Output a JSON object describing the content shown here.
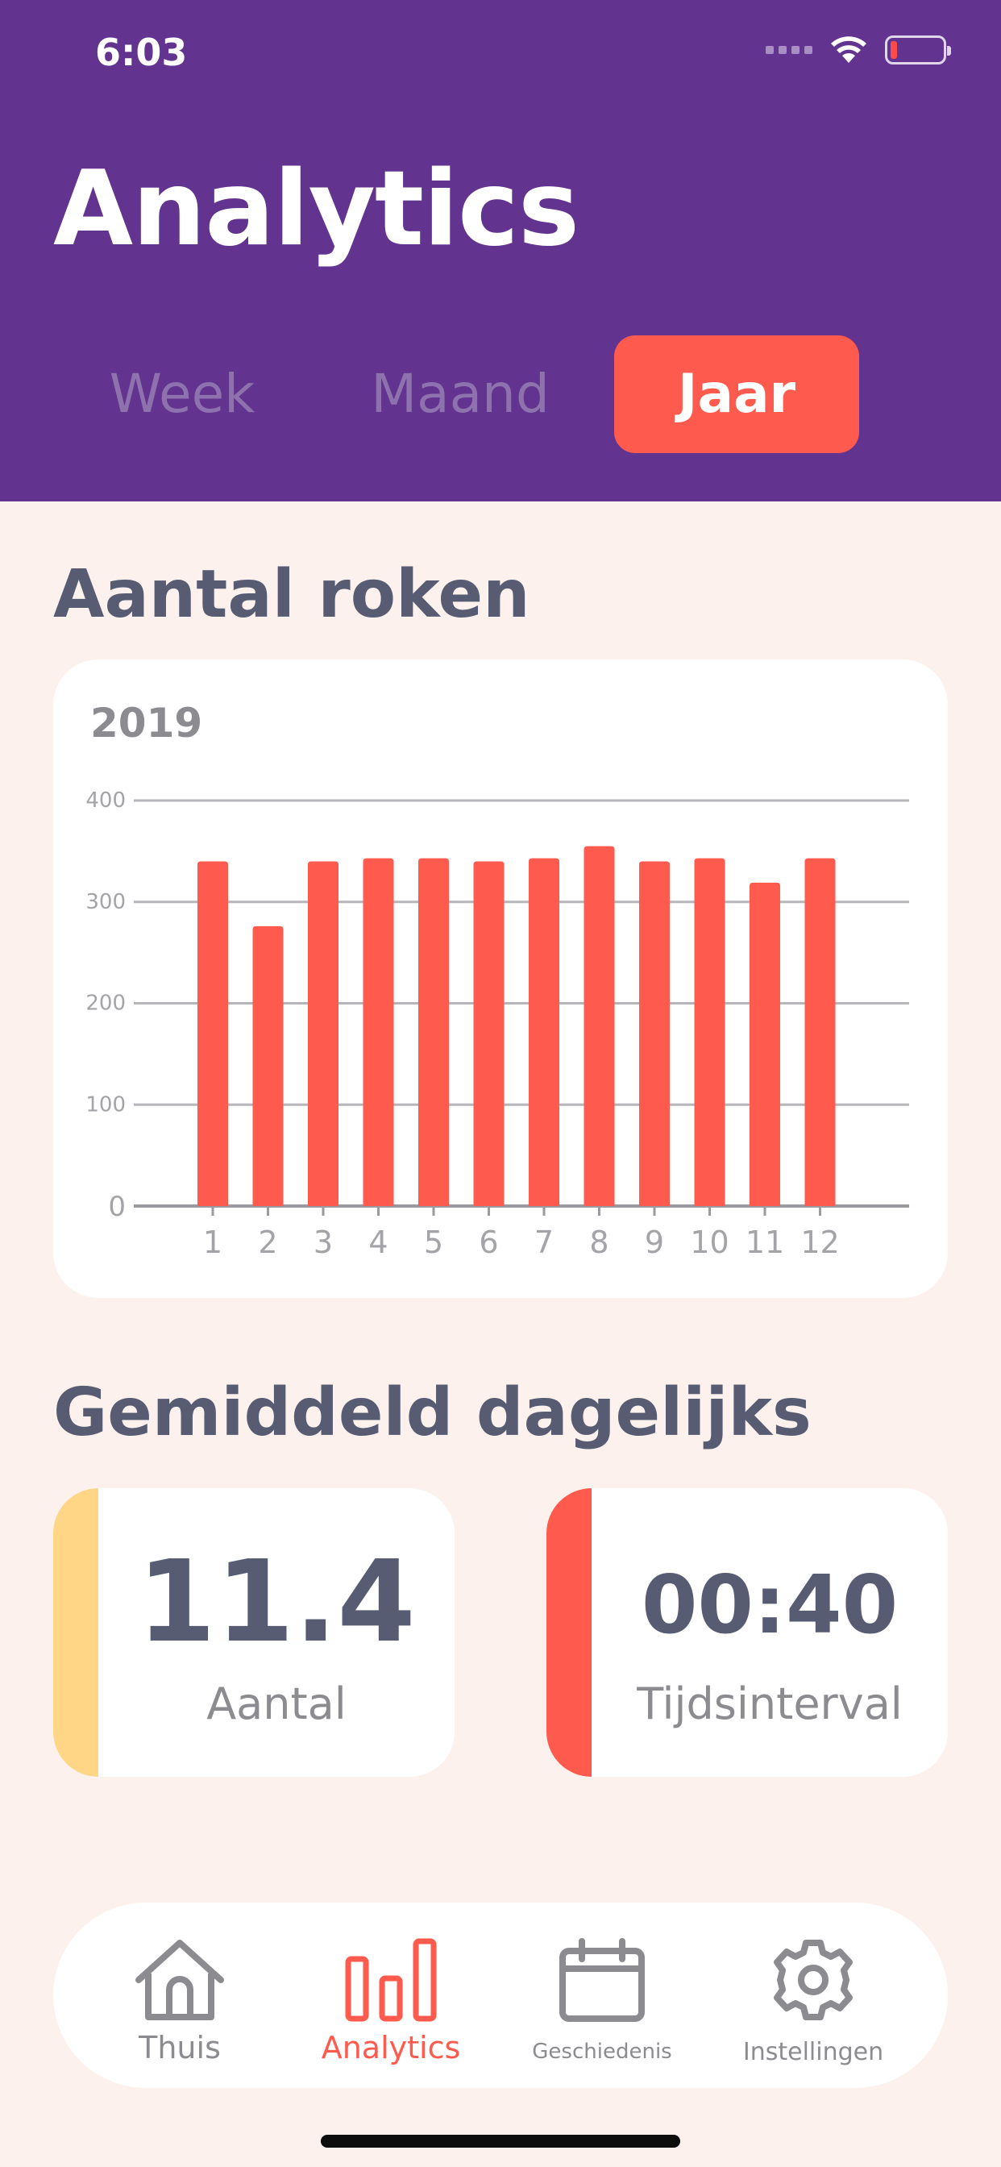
{
  "status_bar": {
    "time": "6:03"
  },
  "header": {
    "title": "Analytics"
  },
  "tabs": [
    {
      "label": "Week",
      "selected": false
    },
    {
      "label": "Maand",
      "selected": false
    },
    {
      "label": "Jaar",
      "selected": true
    }
  ],
  "section_count": {
    "title": "Aantal roken"
  },
  "chart_data": {
    "type": "bar",
    "title": "2019",
    "categories": [
      "1",
      "2",
      "3",
      "4",
      "5",
      "6",
      "7",
      "8",
      "9",
      "10",
      "11",
      "12"
    ],
    "values": [
      340,
      276,
      340,
      343,
      343,
      340,
      343,
      355,
      340,
      343,
      319,
      343
    ],
    "y_ticks": [
      0,
      100,
      200,
      300,
      400
    ],
    "ylim": [
      0,
      400
    ],
    "grid": true,
    "bar_color": "#FF5A4E"
  },
  "section_avg": {
    "title": "Gemiddeld dagelijks"
  },
  "stats": [
    {
      "value": "11.4",
      "label": "Aantal",
      "accent": "#FFD586"
    },
    {
      "value": "00:40",
      "label": "Tijdsinterval",
      "accent": "#FF5A4E"
    }
  ],
  "nav": [
    {
      "label": "Thuis",
      "icon": "house-icon",
      "active": false
    },
    {
      "label": "Analytics",
      "icon": "bar-chart-icon",
      "active": true
    },
    {
      "label": "Geschiedenis",
      "icon": "calendar-icon",
      "active": false
    },
    {
      "label": "Instellingen",
      "icon": "gear-icon",
      "active": false
    }
  ],
  "colors": {
    "header": "#62338F",
    "accent": "#FF5A4E",
    "background": "#FCF1EC",
    "text": "#575C73"
  }
}
